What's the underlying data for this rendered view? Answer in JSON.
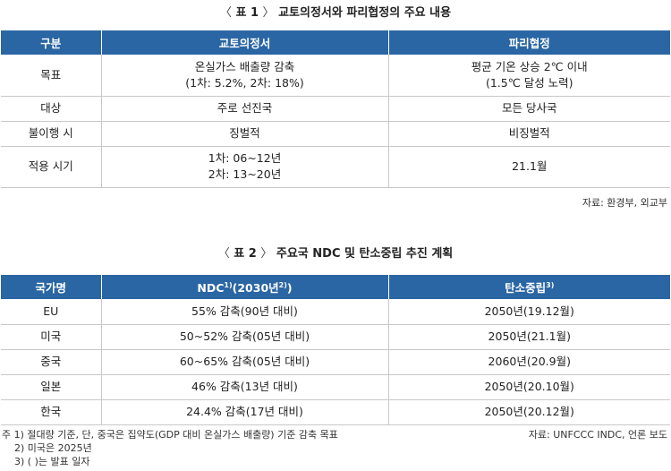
{
  "table1": {
    "title_open": "〈",
    "title_label": "표 1",
    "title_close": "〉",
    "title_text": "교토의정서와 파리협정의 주요 내용",
    "headers": [
      "구분",
      "교토의정서",
      "파리협정"
    ],
    "rows": [
      {
        "label": "목표",
        "kyoto": [
          "온실가스 배출량 감축",
          "(1차: 5.2%, 2차: 18%)"
        ],
        "paris": [
          "평균 기온 상승 2℃ 이내",
          "(1.5℃ 달성 노력)"
        ]
      },
      {
        "label": "대상",
        "kyoto": [
          "주로 선진국"
        ],
        "paris": [
          "모든 당사국"
        ]
      },
      {
        "label": "불이행 시",
        "kyoto": [
          "징벌적"
        ],
        "paris": [
          "비징벌적"
        ]
      },
      {
        "label": "적용 시기",
        "kyoto": [
          "1차: 06~12년",
          "2차: 13~20년"
        ],
        "paris": [
          "21.1월"
        ]
      }
    ],
    "source": "자료: 환경부, 외교부"
  },
  "table2": {
    "title_open": "〈",
    "title_label": "표 2",
    "title_close": "〉",
    "title_text": "주요국 NDC 및 탄소중립 추진 계획",
    "headers": {
      "country": "국가명",
      "ndc_prefix": "NDC",
      "ndc_sup1": "1)",
      "ndc_mid": "(2030년",
      "ndc_sup2": "2)",
      "ndc_suffix": ")",
      "neutral": "탄소중립",
      "neutral_sup": "3)"
    },
    "rows": [
      {
        "country": "EU",
        "ndc": "55% 감축(90년 대비)",
        "neutral": "2050년(19.12월)"
      },
      {
        "country": "미국",
        "ndc": "50~52% 감축(05년 대비)",
        "neutral": "2050년(21.1월)"
      },
      {
        "country": "중국",
        "ndc": "60~65% 감축(05년 대비)",
        "neutral": "2060년(20.9월)"
      },
      {
        "country": "일본",
        "ndc": "46% 감축(13년 대비)",
        "neutral": "2050년(20.10월)"
      },
      {
        "country": "한국",
        "ndc": "24.4% 감축(17년 대비)",
        "neutral": "2050년(20.12월)"
      }
    ],
    "notes": [
      "주 1) 절대량 기준, 단, 중국은 집약도(GDP 대비 온실가스 배출량) 기준 감축 목표",
      "2) 미국은 2025년",
      "3) (   )는 발표 일자"
    ],
    "source": "자료: UNFCCC INDC, 언론 보도"
  },
  "colors": {
    "header_bg": "#2a66a3",
    "header_text": "#ffffff",
    "rule": "#c8c8c8"
  }
}
